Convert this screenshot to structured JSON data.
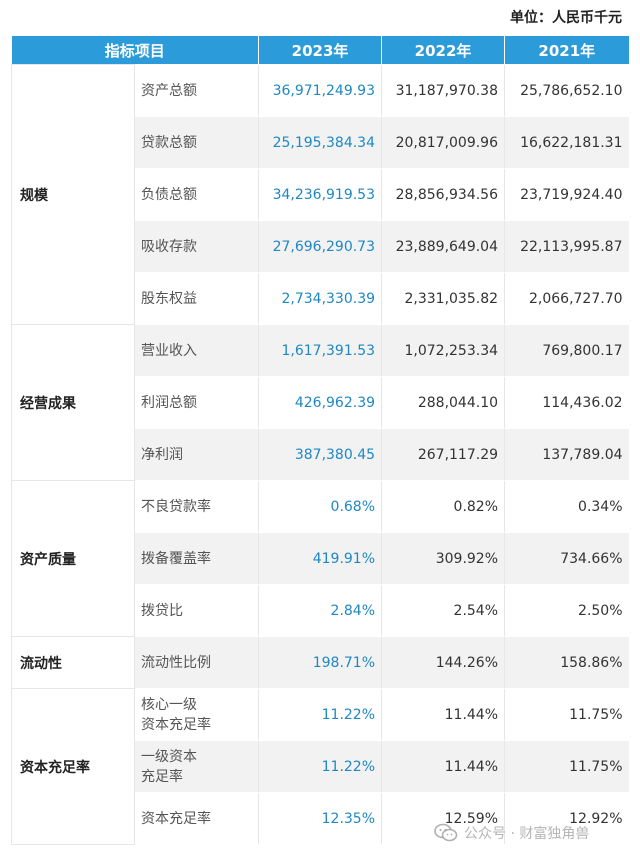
{
  "unit_label": "单位：人民币千元",
  "header": [
    "指标项目",
    "2023年",
    "2022年",
    "2021年"
  ],
  "groups": [
    {
      "category": "规模",
      "rows": [
        {
          "metric": "资产总额",
          "v2023": "36,971,249.93",
          "v2022": "31,187,970.38",
          "v2021": "25,786,652.10"
        },
        {
          "metric": "贷款总额",
          "v2023": "25,195,384.34",
          "v2022": "20,817,009.96",
          "v2021": "16,622,181.31"
        },
        {
          "metric": "负债总额",
          "v2023": "34,236,919.53",
          "v2022": "28,856,934.56",
          "v2021": "23,719,924.40"
        },
        {
          "metric": "吸收存款",
          "v2023": "27,696,290.73",
          "v2022": "23,889,649.04",
          "v2021": "22,113,995.87"
        },
        {
          "metric": "股东权益",
          "v2023": "2,734,330.39",
          "v2022": "2,331,035.82",
          "v2021": "2,066,727.70"
        }
      ]
    },
    {
      "category": "经营成果",
      "rows": [
        {
          "metric": "营业收入",
          "v2023": "1,617,391.53",
          "v2022": "1,072,253.34",
          "v2021": "769,800.17"
        },
        {
          "metric": "利润总额",
          "v2023": "426,962.39",
          "v2022": "288,044.10",
          "v2021": "114,436.02"
        },
        {
          "metric": "净利润",
          "v2023": "387,380.45",
          "v2022": "267,117.29",
          "v2021": "137,789.04"
        }
      ]
    },
    {
      "category": "资产质量",
      "rows": [
        {
          "metric": "不良贷款率",
          "v2023": "0.68%",
          "v2022": "0.82%",
          "v2021": "0.34%"
        },
        {
          "metric": "拨备覆盖率",
          "v2023": "419.91%",
          "v2022": "309.92%",
          "v2021": "734.66%"
        },
        {
          "metric": "拨贷比",
          "v2023": "2.84%",
          "v2022": "2.54%",
          "v2021": "2.50%"
        }
      ]
    },
    {
      "category": "流动性",
      "rows": [
        {
          "metric": "流动性比例",
          "v2023": "198.71%",
          "v2022": "144.26%",
          "v2021": "158.86%"
        }
      ]
    },
    {
      "category": "资本充足率",
      "rows": [
        {
          "metric": "核心一级\n资本充足率",
          "v2023": "11.22%",
          "v2022": "11.44%",
          "v2021": "11.75%"
        },
        {
          "metric": "一级资本\n充足率",
          "v2023": "11.22%",
          "v2022": "11.44%",
          "v2021": "11.75%"
        },
        {
          "metric": "资本充足率",
          "v2023": "12.35%",
          "v2022": "12.59%",
          "v2021": "12.92%"
        }
      ]
    }
  ],
  "watermark": {
    "text": "公众号 · 财富独角兽",
    "icon": "wechat-icon"
  }
}
